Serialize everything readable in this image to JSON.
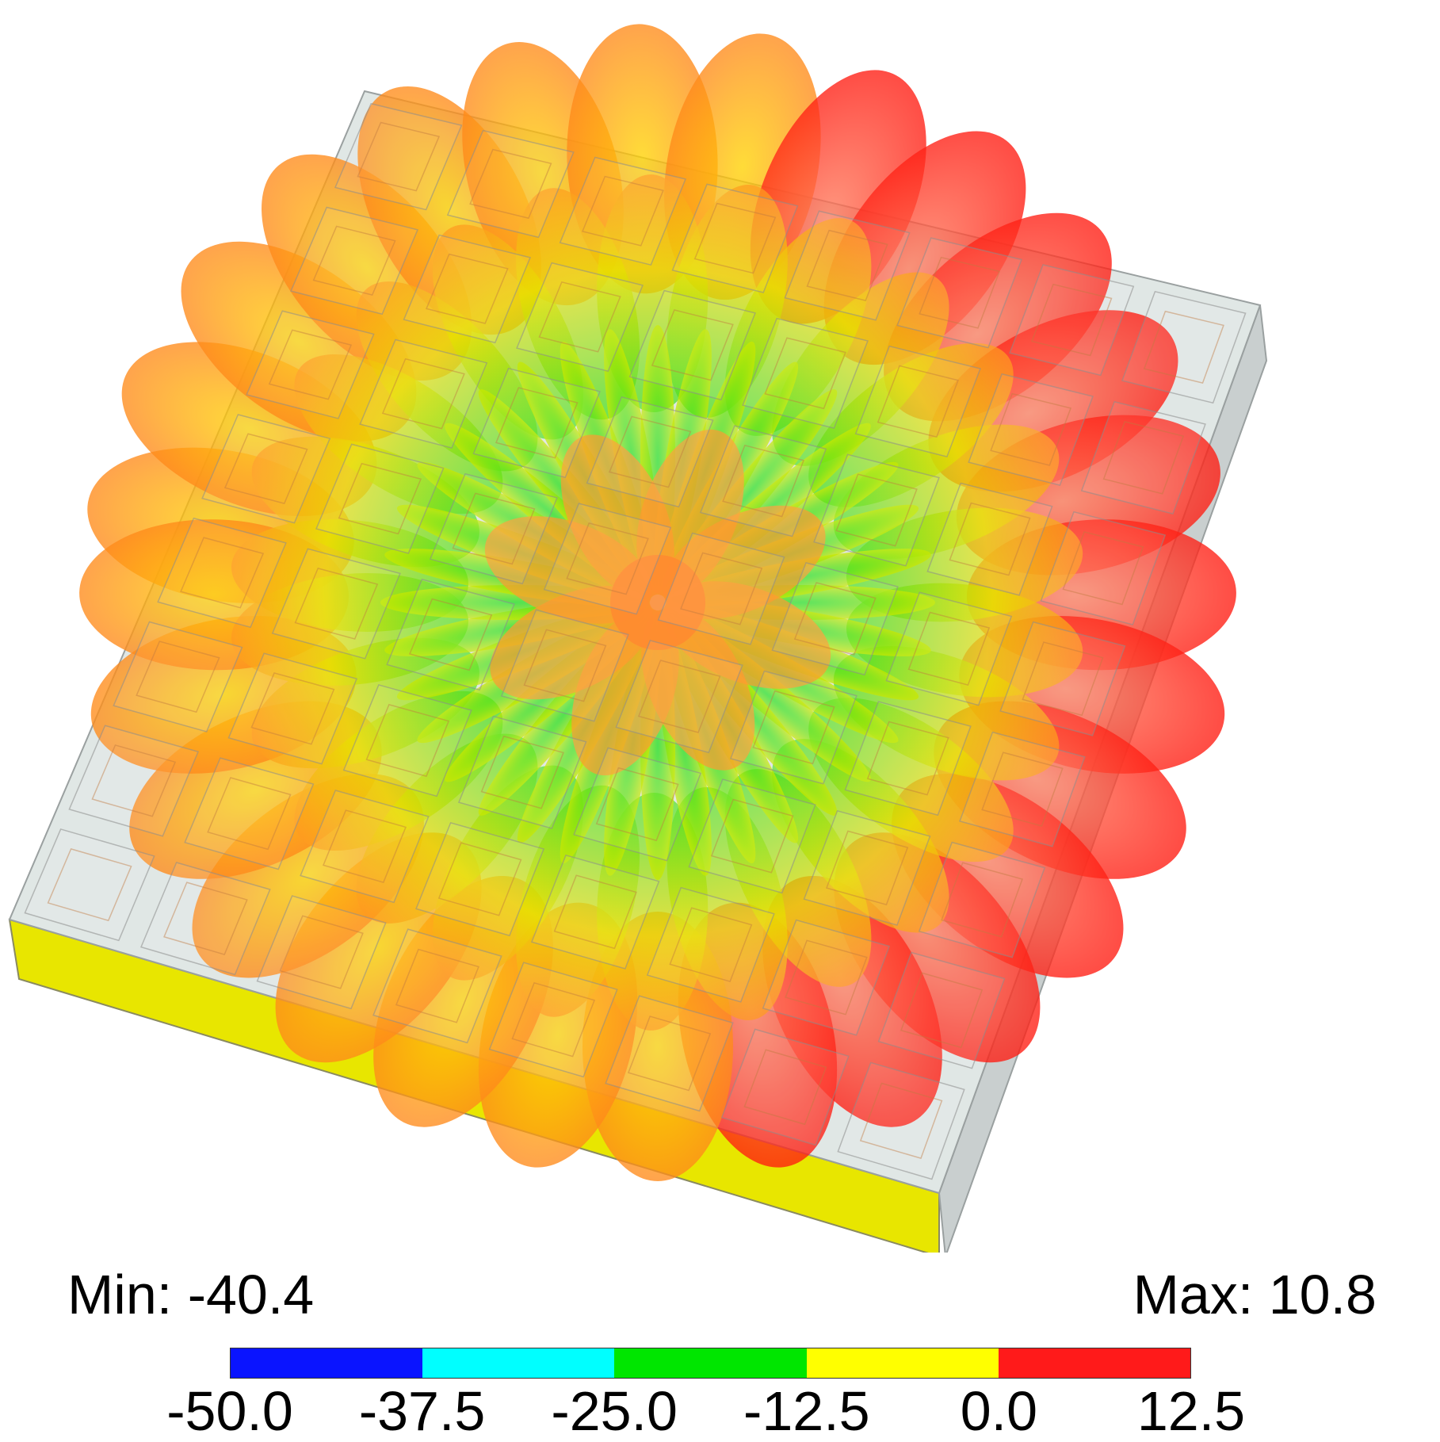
{
  "scale": {
    "min_text": "Min: -40.4",
    "max_text": "Max: 10.8",
    "tick_labels": [
      "-50.0",
      "-37.5",
      "-25.0",
      "-12.5",
      "0.0",
      "12.5"
    ],
    "segment_colors": [
      "#0a14ff",
      "#00ffff",
      "#00e600",
      "#ffff00",
      "#ff1a1a"
    ]
  },
  "scene": {
    "array_rows": 8,
    "array_cols": 8
  },
  "colors": {
    "board_top": "#dde4e2",
    "board_edge": "#9aa0a0",
    "ground_plane": "#e8e600",
    "pattern_red": "#ff1a10",
    "pattern_orange": "#ff8a1a",
    "pattern_yellow": "#f0e000",
    "pattern_green": "#20e020"
  }
}
